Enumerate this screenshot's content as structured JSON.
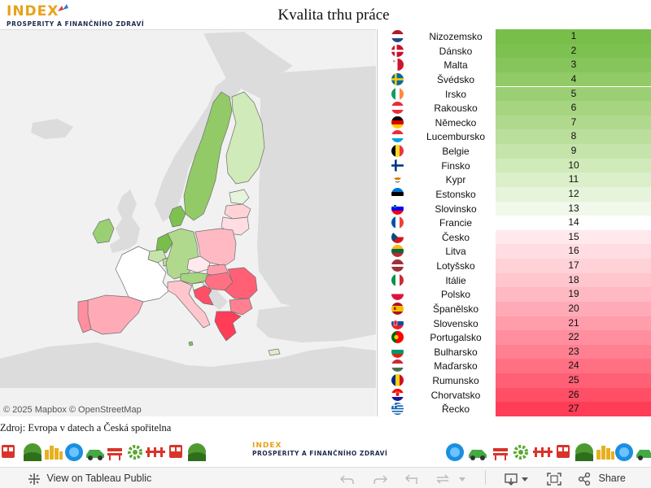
{
  "header": {
    "logo_brand": "INDEX",
    "logo_sub": "PROSPERITY A FINANČNÍHO ZDRAVÍ",
    "title": "Kvalita trhu práce"
  },
  "map": {
    "attribution": "© 2025 Mapbox  © OpenStreetMap",
    "land_color": "#dcdcdc",
    "water_color": "#f1f1f1"
  },
  "ranking": [
    {
      "name": "Nizozemsko",
      "rank": "1",
      "color": "#78be4a",
      "flag": "nl"
    },
    {
      "name": "Dánsko",
      "rank": "2",
      "color": "#7dc150",
      "flag": "dk"
    },
    {
      "name": "Malta",
      "rank": "3",
      "color": "#86c55b",
      "flag": "mt"
    },
    {
      "name": "Švédsko",
      "rank": "4",
      "color": "#91ca67",
      "flag": "se"
    },
    {
      "name": "Irsko",
      "rank": "5",
      "color": "#9bcf73",
      "flag": "ie"
    },
    {
      "name": "Rakousko",
      "rank": "6",
      "color": "#a6d480",
      "flag": "at"
    },
    {
      "name": "Německo",
      "rank": "7",
      "color": "#b0d98e",
      "flag": "de"
    },
    {
      "name": "Lucembursko",
      "rank": "8",
      "color": "#badf9c",
      "flag": "lu"
    },
    {
      "name": "Belgie",
      "rank": "9",
      "color": "#c5e4ab",
      "flag": "be"
    },
    {
      "name": "Finsko",
      "rank": "10",
      "color": "#d0eaba",
      "flag": "fi"
    },
    {
      "name": "Kypr",
      "rank": "11",
      "color": "#dbefca",
      "flag": "cy"
    },
    {
      "name": "Estonsko",
      "rank": "12",
      "color": "#e5f4da",
      "flag": "ee"
    },
    {
      "name": "Slovinsko",
      "rank": "13",
      "color": "#f0f9ea",
      "flag": "si"
    },
    {
      "name": "Francie",
      "rank": "14",
      "color": "#ffffff",
      "flag": "fr"
    },
    {
      "name": "Česko",
      "rank": "15",
      "color": "#ffe9ec",
      "flag": "cz"
    },
    {
      "name": "Litva",
      "rank": "16",
      "color": "#ffdde2",
      "flag": "lt"
    },
    {
      "name": "Lotyšsko",
      "rank": "17",
      "color": "#ffd2d8",
      "flag": "lv"
    },
    {
      "name": "Itálie",
      "rank": "18",
      "color": "#ffc6ce",
      "flag": "it"
    },
    {
      "name": "Polsko",
      "rank": "19",
      "color": "#ffb9c3",
      "flag": "pl"
    },
    {
      "name": "Španělsko",
      "rank": "20",
      "color": "#ffabb7",
      "flag": "es"
    },
    {
      "name": "Slovensko",
      "rank": "21",
      "color": "#ff9dab",
      "flag": "sk"
    },
    {
      "name": "Portugalsko",
      "rank": "22",
      "color": "#ff8f9e",
      "flag": "pt"
    },
    {
      "name": "Bulharsko",
      "rank": "23",
      "color": "#ff8091",
      "flag": "bg"
    },
    {
      "name": "Maďarsko",
      "rank": "24",
      "color": "#ff7083",
      "flag": "hu"
    },
    {
      "name": "Rumunsko",
      "rank": "25",
      "color": "#ff6075",
      "flag": "ro"
    },
    {
      "name": "Chorvatsko",
      "rank": "26",
      "color": "#ff4f66",
      "flag": "hr"
    },
    {
      "name": "Řecko",
      "rank": "27",
      "color": "#ff3d57",
      "flag": "gr"
    }
  ],
  "source": "Zdroj: Evropa v datech a Česká spořitelna",
  "band": {
    "logo_brand": "INDEX",
    "logo_sub": "PROSPERITY A FINANČNÍHO ZDRAVÍ"
  },
  "toolbar": {
    "view_label": "View on Tableau Public",
    "share_label": "Share"
  }
}
